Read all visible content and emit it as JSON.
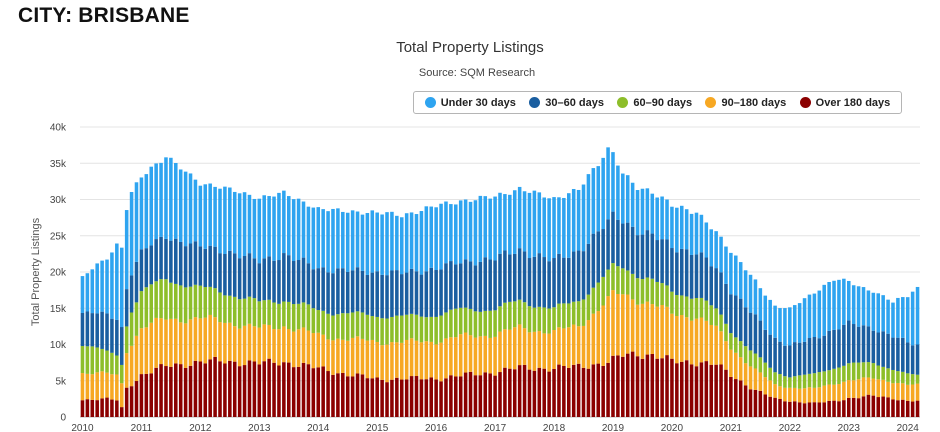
{
  "page": {
    "city_label": "CITY: BRISBANE"
  },
  "chart_data": {
    "type": "bar",
    "stacked": true,
    "title": "Total Property Listings",
    "subtitle": "Source: SQM Research",
    "xlabel": "",
    "ylabel": "Total Property Listings",
    "ylim": [
      0,
      40000
    ],
    "yticks": [
      0,
      5000,
      10000,
      15000,
      20000,
      25000,
      30000,
      35000,
      40000
    ],
    "ytick_labels": [
      "0",
      "5k",
      "10k",
      "15k",
      "20k",
      "25k",
      "30k",
      "35k",
      "40k"
    ],
    "x_start": "2010-01",
    "x_end": "2024-03",
    "xtick_labels": [
      "2010",
      "2011",
      "2012",
      "2013",
      "2014",
      "2015",
      "2016",
      "2017",
      "2018",
      "2019",
      "2020",
      "2021",
      "2022",
      "2023",
      "2024"
    ],
    "grid": "horizontal",
    "legend_position": "top-right",
    "series": [
      {
        "name": "Over 180 days",
        "color": "#8b0000",
        "anchors": [
          [
            "2010-01",
            2400
          ],
          [
            "2010-06",
            2500
          ],
          [
            "2010-08",
            2300
          ],
          [
            "2010-09",
            1300
          ],
          [
            "2010-10",
            4000
          ],
          [
            "2011-01",
            5800
          ],
          [
            "2011-06",
            7000
          ],
          [
            "2012-01",
            7600
          ],
          [
            "2012-06",
            7700
          ],
          [
            "2013-01",
            7400
          ],
          [
            "2013-06",
            7600
          ],
          [
            "2014-01",
            6700
          ],
          [
            "2014-06",
            6000
          ],
          [
            "2015-01",
            5200
          ],
          [
            "2015-06",
            5300
          ],
          [
            "2016-01",
            5300
          ],
          [
            "2016-06",
            5700
          ],
          [
            "2017-01",
            6200
          ],
          [
            "2017-06",
            6800
          ],
          [
            "2018-01",
            6700
          ],
          [
            "2018-06",
            7000
          ],
          [
            "2018-12",
            7500
          ],
          [
            "2019-03",
            8500
          ],
          [
            "2019-06",
            8800
          ],
          [
            "2019-09",
            8500
          ],
          [
            "2020-01",
            7700
          ],
          [
            "2020-06",
            7600
          ],
          [
            "2020-10",
            7200
          ],
          [
            "2021-01",
            5800
          ],
          [
            "2021-06",
            3700
          ],
          [
            "2021-10",
            2500
          ],
          [
            "2022-01",
            2200
          ],
          [
            "2022-06",
            1900
          ],
          [
            "2022-10",
            2200
          ],
          [
            "2023-01",
            2600
          ],
          [
            "2023-06",
            2900
          ],
          [
            "2023-10",
            2600
          ],
          [
            "2024-01",
            2200
          ],
          [
            "2024-03",
            2200
          ]
        ]
      },
      {
        "name": "90–180 days",
        "color": "#f7a823",
        "anchors": [
          [
            "2010-01",
            3700
          ],
          [
            "2010-06",
            3500
          ],
          [
            "2010-09",
            3400
          ],
          [
            "2010-10",
            5200
          ],
          [
            "2011-01",
            6500
          ],
          [
            "2011-06",
            6500
          ],
          [
            "2012-01",
            6000
          ],
          [
            "2012-06",
            5500
          ],
          [
            "2013-01",
            4800
          ],
          [
            "2013-06",
            5000
          ],
          [
            "2014-01",
            4600
          ],
          [
            "2014-06",
            4800
          ],
          [
            "2015-01",
            5200
          ],
          [
            "2015-06",
            5000
          ],
          [
            "2016-01",
            5200
          ],
          [
            "2016-06",
            5400
          ],
          [
            "2017-01",
            5200
          ],
          [
            "2017-06",
            5500
          ],
          [
            "2018-01",
            5000
          ],
          [
            "2018-06",
            5600
          ],
          [
            "2019-01",
            9000
          ],
          [
            "2019-06",
            7500
          ],
          [
            "2020-01",
            6500
          ],
          [
            "2020-06",
            6300
          ],
          [
            "2020-10",
            5000
          ],
          [
            "2021-01",
            3800
          ],
          [
            "2021-06",
            2800
          ],
          [
            "2021-10",
            1900
          ],
          [
            "2022-01",
            1900
          ],
          [
            "2022-06",
            2000
          ],
          [
            "2022-10",
            2400
          ],
          [
            "2023-01",
            2500
          ],
          [
            "2023-06",
            2400
          ],
          [
            "2023-10",
            2300
          ],
          [
            "2024-03",
            2200
          ]
        ]
      },
      {
        "name": "60–90 days",
        "color": "#8dbe2a",
        "anchors": [
          [
            "2010-01",
            3900
          ],
          [
            "2010-06",
            3000
          ],
          [
            "2010-09",
            2700
          ],
          [
            "2010-11",
            4500
          ],
          [
            "2011-01",
            5000
          ],
          [
            "2011-06",
            5500
          ],
          [
            "2012-01",
            4200
          ],
          [
            "2012-06",
            4000
          ],
          [
            "2013-01",
            3600
          ],
          [
            "2013-06",
            3600
          ],
          [
            "2014-01",
            3400
          ],
          [
            "2014-06",
            3500
          ],
          [
            "2015-01",
            3600
          ],
          [
            "2015-06",
            3500
          ],
          [
            "2016-01",
            3600
          ],
          [
            "2016-06",
            3700
          ],
          [
            "2017-01",
            3500
          ],
          [
            "2017-06",
            3700
          ],
          [
            "2018-01",
            3200
          ],
          [
            "2018-06",
            3500
          ],
          [
            "2019-01",
            3800
          ],
          [
            "2019-06",
            3500
          ],
          [
            "2020-01",
            3000
          ],
          [
            "2020-06",
            2800
          ],
          [
            "2021-01",
            2300
          ],
          [
            "2021-06",
            2100
          ],
          [
            "2022-01",
            1500
          ],
          [
            "2022-06",
            2000
          ],
          [
            "2023-01",
            2300
          ],
          [
            "2023-06",
            2100
          ],
          [
            "2024-03",
            1300
          ]
        ]
      },
      {
        "name": "30–60 days",
        "color": "#1a5ea0",
        "anchors": [
          [
            "2010-01",
            4300
          ],
          [
            "2010-06",
            5200
          ],
          [
            "2010-09",
            5000
          ],
          [
            "2011-01",
            5400
          ],
          [
            "2011-06",
            6000
          ],
          [
            "2012-01",
            5600
          ],
          [
            "2012-06",
            5800
          ],
          [
            "2013-01",
            5700
          ],
          [
            "2013-06",
            6200
          ],
          [
            "2014-01",
            5800
          ],
          [
            "2014-06",
            5900
          ],
          [
            "2015-01",
            6000
          ],
          [
            "2015-06",
            6000
          ],
          [
            "2016-01",
            6400
          ],
          [
            "2016-06",
            6500
          ],
          [
            "2017-01",
            7000
          ],
          [
            "2017-06",
            7000
          ],
          [
            "2018-01",
            6700
          ],
          [
            "2018-06",
            6800
          ],
          [
            "2019-01",
            7000
          ],
          [
            "2019-06",
            6000
          ],
          [
            "2020-01",
            6300
          ],
          [
            "2020-06",
            6000
          ],
          [
            "2021-01",
            5600
          ],
          [
            "2021-06",
            5200
          ],
          [
            "2022-01",
            4200
          ],
          [
            "2022-06",
            5000
          ],
          [
            "2023-01",
            5500
          ],
          [
            "2023-06",
            4800
          ],
          [
            "2024-03",
            4200
          ]
        ]
      },
      {
        "name": "Under 30 days",
        "color": "#2ea4f0",
        "anchors": [
          [
            "2010-01",
            4900
          ],
          [
            "2010-06",
            8000
          ],
          [
            "2010-09",
            11000
          ],
          [
            "2011-01",
            10500
          ],
          [
            "2011-06",
            11000
          ],
          [
            "2012-01",
            8800
          ],
          [
            "2012-06",
            8600
          ],
          [
            "2013-01",
            8700
          ],
          [
            "2013-06",
            8500
          ],
          [
            "2014-01",
            8200
          ],
          [
            "2014-06",
            8200
          ],
          [
            "2015-01",
            8200
          ],
          [
            "2015-06",
            8000
          ],
          [
            "2016-01",
            8600
          ],
          [
            "2016-06",
            8500
          ],
          [
            "2017-01",
            8500
          ],
          [
            "2017-06",
            8500
          ],
          [
            "2018-01",
            8500
          ],
          [
            "2018-06",
            8500
          ],
          [
            "2018-12",
            10000
          ],
          [
            "2019-03",
            6500
          ],
          [
            "2019-06",
            6000
          ],
          [
            "2020-01",
            5800
          ],
          [
            "2020-06",
            5500
          ],
          [
            "2020-10",
            5000
          ],
          [
            "2021-01",
            5300
          ],
          [
            "2021-06",
            5000
          ],
          [
            "2021-10",
            4500
          ],
          [
            "2022-01",
            5000
          ],
          [
            "2022-06",
            6500
          ],
          [
            "2022-10",
            6800
          ],
          [
            "2023-01",
            5700
          ],
          [
            "2023-06",
            5200
          ],
          [
            "2023-10",
            4600
          ],
          [
            "2024-03",
            8000
          ]
        ]
      }
    ],
    "legend": [
      "Under 30 days",
      "30–60 days",
      "60–90 days",
      "90–180 days",
      "Over 180 days"
    ]
  }
}
